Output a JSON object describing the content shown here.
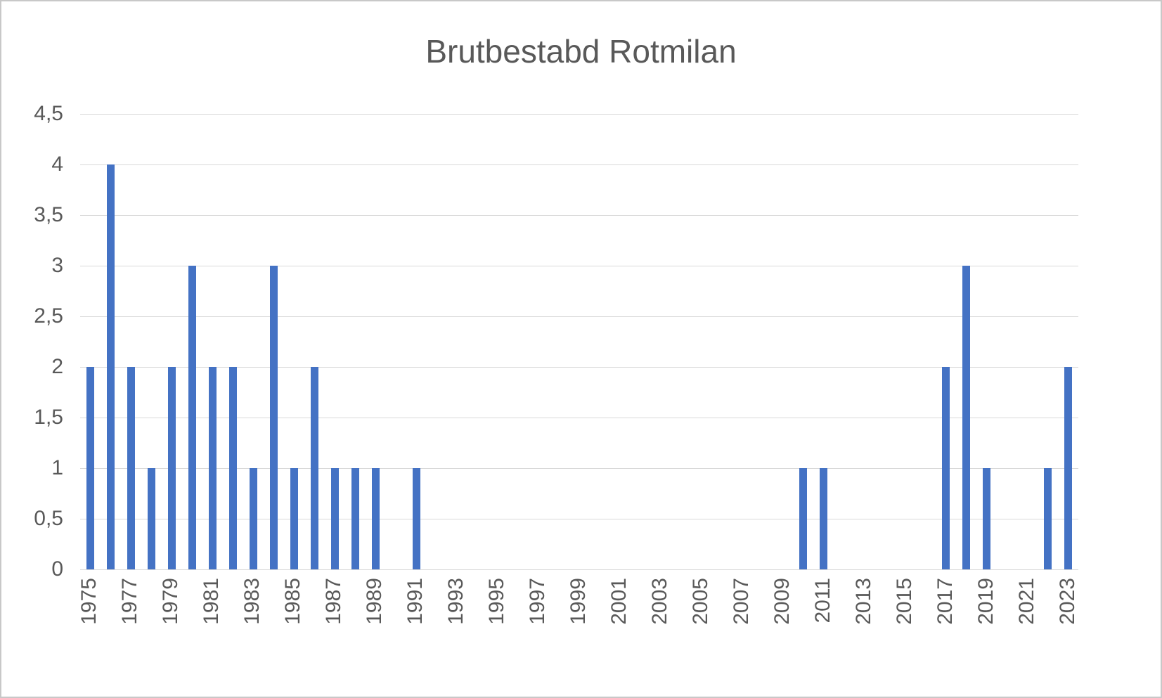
{
  "page": {
    "background": "#ffffff",
    "border_color": "#c8c8c8"
  },
  "chart_data": {
    "type": "bar",
    "title": "Brutbestabd Rotmilan",
    "x": [
      1975,
      1976,
      1977,
      1978,
      1979,
      1980,
      1981,
      1982,
      1983,
      1984,
      1985,
      1986,
      1987,
      1988,
      1989,
      1990,
      1991,
      1992,
      1993,
      1994,
      1995,
      1996,
      1997,
      1998,
      1999,
      2000,
      2001,
      2002,
      2003,
      2004,
      2005,
      2006,
      2007,
      2008,
      2009,
      2010,
      2011,
      2012,
      2013,
      2014,
      2015,
      2016,
      2017,
      2018,
      2019,
      2020,
      2021,
      2022,
      2023
    ],
    "values": [
      2,
      4,
      2,
      1,
      2,
      3,
      2,
      2,
      1,
      3,
      1,
      2,
      1,
      1,
      1,
      0,
      1,
      0,
      0,
      0,
      0,
      0,
      0,
      0,
      0,
      0,
      0,
      0,
      0,
      0,
      0,
      0,
      0,
      0,
      0,
      1,
      1,
      0,
      0,
      0,
      0,
      0,
      2,
      3,
      1,
      0,
      0,
      1,
      2
    ],
    "ylim": [
      0,
      4.5
    ],
    "ytick_step": 0.5,
    "ytick_labels": [
      "0",
      "0,5",
      "1",
      "1,5",
      "2",
      "2,5",
      "3",
      "3,5",
      "4",
      "4,5"
    ],
    "xtick_labels": [
      "1975",
      "1977",
      "1979",
      "1981",
      "1983",
      "1985",
      "1987",
      "1989",
      "1991",
      "1993",
      "1995",
      "1997",
      "1999",
      "2001",
      "2003",
      "2005",
      "2007",
      "2009",
      "2011",
      "2013",
      "2015",
      "2017",
      "2019",
      "2021",
      "2023"
    ],
    "xtick_every": 2,
    "xlabel": "",
    "ylabel": "",
    "grid": true,
    "legend_position": "none",
    "colors": {
      "bar": "#4472c4",
      "gridline": "#d9d9d9",
      "text": "#595959"
    }
  }
}
